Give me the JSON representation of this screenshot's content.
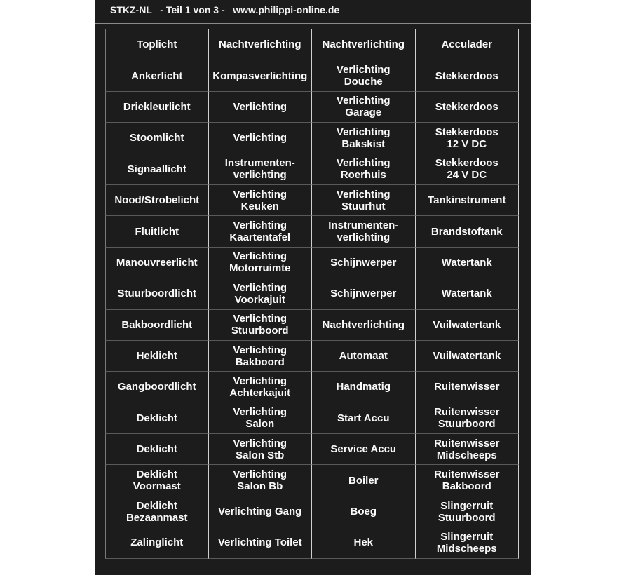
{
  "header": {
    "code": "STKZ-NL",
    "part": "- Teil 1 von 3 -",
    "website": "www.philippi-online.de"
  },
  "rows": [
    [
      "Toplicht",
      "Nachtverlichting",
      "Nachtverlichting",
      "Acculader"
    ],
    [
      "Ankerlicht",
      "Kompasverlichting",
      "Verlichting\nDouche",
      "Stekkerdoos"
    ],
    [
      "Driekleurlicht",
      "Verlichting",
      "Verlichting\nGarage",
      "Stekkerdoos"
    ],
    [
      "Stoomlicht",
      "Verlichting",
      "Verlichting\nBakskist",
      "Stekkerdoos\n12 V  DC"
    ],
    [
      "Signaallicht",
      "Instrumenten-\nverlichting",
      "Verlichting\nRoerhuis",
      "Stekkerdoos\n24 V  DC"
    ],
    [
      "Nood/Strobelicht",
      "Verlichting\nKeuken",
      "Verlichting\nStuurhut",
      "Tankinstrument"
    ],
    [
      "Fluitlicht",
      "Verlichting\nKaartentafel",
      "Instrumenten-\nverlichting",
      "Brandstoftank"
    ],
    [
      "Manouvreerlicht",
      "Verlichting\nMotorruimte",
      "Schijnwerper",
      "Watertank"
    ],
    [
      "Stuurboordlicht",
      "Verlichting\nVoorkajuit",
      "Schijnwerper",
      "Watertank"
    ],
    [
      "Bakboordlicht",
      "Verlichting\nStuurboord",
      "Nachtverlichting",
      "Vuilwatertank"
    ],
    [
      "Heklicht",
      "Verlichting\nBakboord",
      "Automaat",
      "Vuilwatertank"
    ],
    [
      "Gangboordlicht",
      "Verlichting\nAchterkajuit",
      "Handmatig",
      "Ruitenwisser"
    ],
    [
      "Deklicht",
      "Verlichting\nSalon",
      "Start Accu",
      "Ruitenwisser\nStuurboord"
    ],
    [
      "Deklicht",
      "Verlichting\nSalon Stb",
      "Service Accu",
      "Ruitenwisser\nMidscheeps"
    ],
    [
      "Deklicht\nVoormast",
      "Verlichting\nSalon Bb",
      "Boiler",
      "Ruitenwisser\nBakboord"
    ],
    [
      "Deklicht\nBezaanmast",
      "Verlichting Gang",
      "Boeg",
      "Slingerruit\nStuurboord"
    ],
    [
      "Zalinglicht",
      "Verlichting Toilet",
      "Hek",
      "Slingerruit\nMidscheeps"
    ]
  ]
}
